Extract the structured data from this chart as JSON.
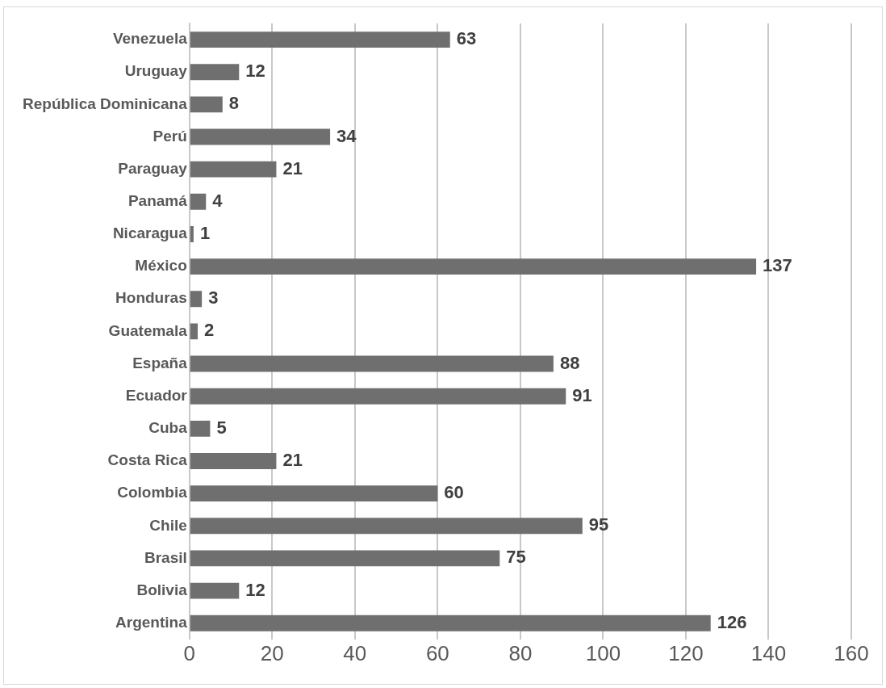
{
  "chart_data": {
    "type": "bar",
    "orientation": "horizontal",
    "categories": [
      "Venezuela",
      "Uruguay",
      "República Dominicana",
      "Perú",
      "Paraguay",
      "Panamá",
      "Nicaragua",
      "México",
      "Honduras",
      "Guatemala",
      "España",
      "Ecuador",
      "Cuba",
      "Costa Rica",
      "Colombia",
      "Chile",
      "Brasil",
      "Bolivia",
      "Argentina"
    ],
    "values": [
      63,
      12,
      8,
      34,
      21,
      4,
      1,
      137,
      3,
      2,
      88,
      91,
      5,
      21,
      60,
      95,
      75,
      12,
      126
    ],
    "color": "#6f6f6f",
    "xlim": [
      0,
      160
    ],
    "xticks": [
      0,
      20,
      40,
      60,
      80,
      100,
      120,
      140,
      160
    ],
    "grid": "x",
    "legend": false,
    "data_labels": true
  }
}
